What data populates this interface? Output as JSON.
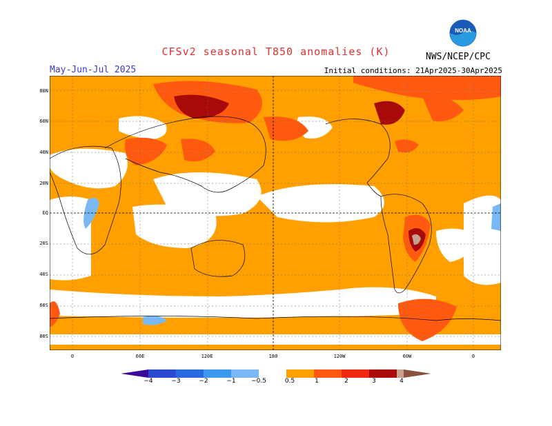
{
  "header": {
    "title": "CFSv2 seasonal T850 anomalies (K)",
    "period": "May-Jun-Jul 2025",
    "initial_conditions": "Initial conditions: 21Apr2025-30Apr2025",
    "agency": "NWS/NCEP/CPC",
    "logo_text": "NOAA"
  },
  "map": {
    "lat_labels": [
      "80N",
      "60N",
      "40N",
      "20N",
      "EQ",
      "20S",
      "40S",
      "60S",
      "80S"
    ],
    "lon_labels": [
      "0",
      "60E",
      "120E",
      "180",
      "120W",
      "60W",
      "0"
    ]
  },
  "colorbar": {
    "ticks": [
      "−4",
      "−3",
      "−2",
      "−1",
      "−0.5",
      "0.5",
      "1",
      "2",
      "3",
      "4"
    ],
    "colors": [
      "#3a0a9a",
      "#2a4ad0",
      "#2a6ae0",
      "#3a9af0",
      "#7ab8f5",
      "#ffffff",
      "#ffa000",
      "#ff5a10",
      "#f02810",
      "#a80a0a",
      "#c8a090",
      "#8a5040"
    ]
  }
}
